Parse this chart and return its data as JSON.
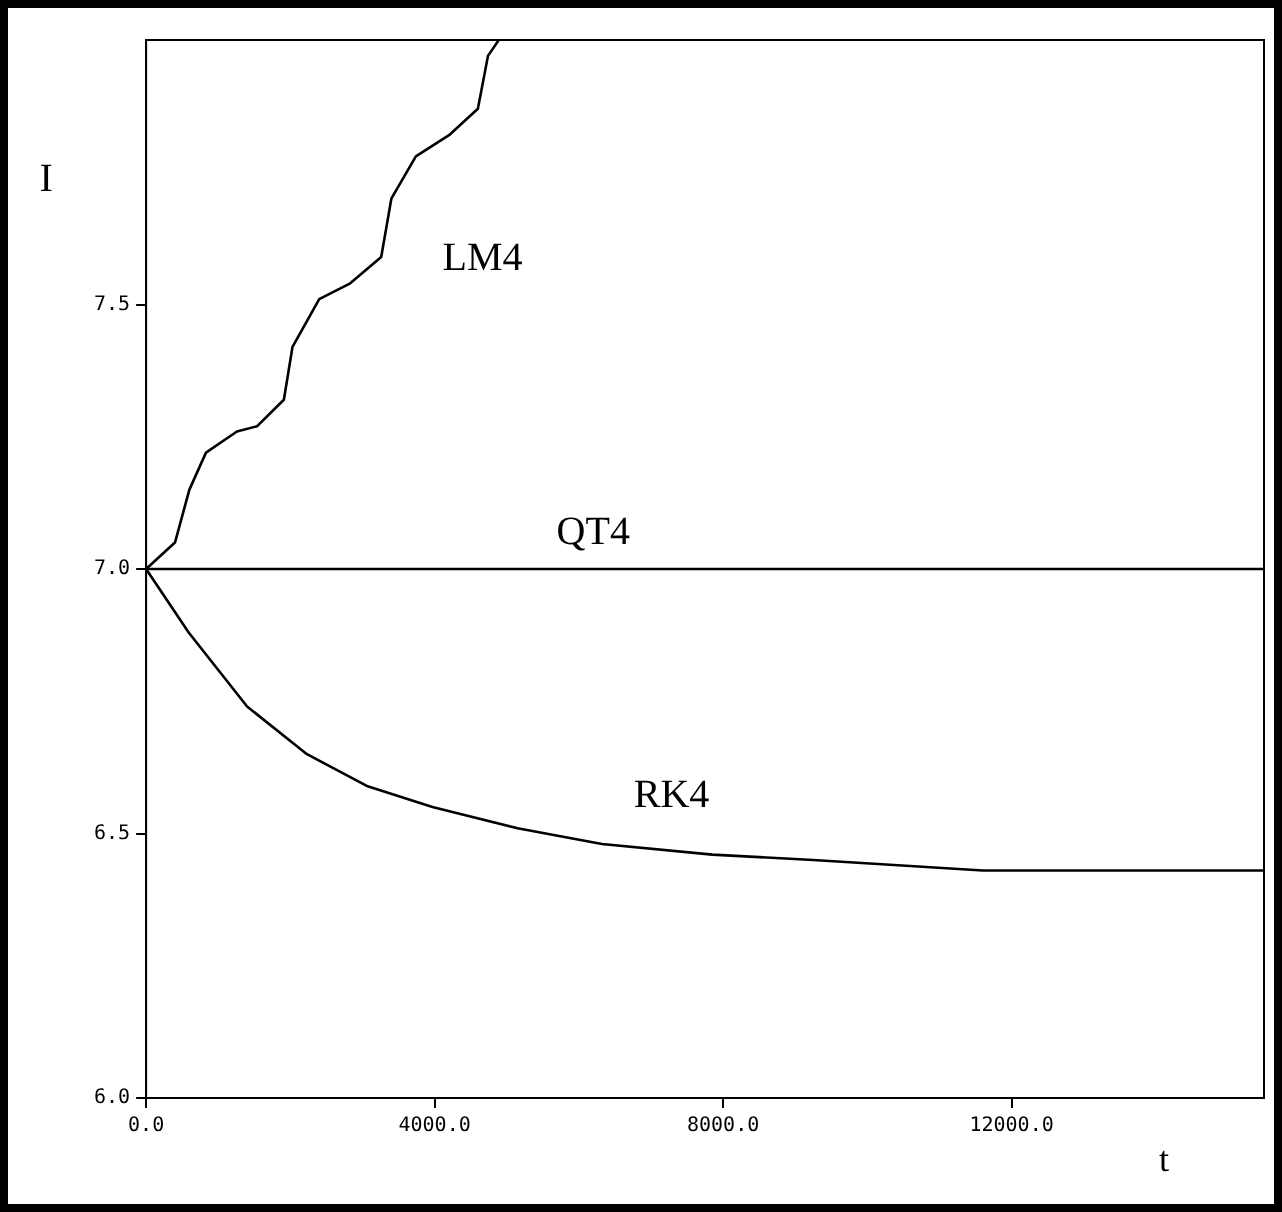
{
  "chart_data": {
    "type": "line",
    "xlabel": "t",
    "ylabel": "I",
    "xlim": [
      0,
      15500
    ],
    "xticks": [
      {
        "value": 0,
        "label": "0.0"
      },
      {
        "value": 4000,
        "label": "4000.0"
      },
      {
        "value": 8000,
        "label": "8000.0"
      },
      {
        "value": 12000,
        "label": "12000.0"
      }
    ],
    "ylim": [
      6.0,
      8.0
    ],
    "yticks": [
      {
        "value": 6.0,
        "label": "6.0"
      },
      {
        "value": 6.5,
        "label": "6.5"
      },
      {
        "value": 7.0,
        "label": "7.0"
      },
      {
        "value": 7.5,
        "label": "7.5"
      }
    ],
    "grid": false,
    "legend": false,
    "marker": "none",
    "line_style": "solid",
    "series": [
      {
        "name": "LM4",
        "color": "#000000",
        "x": [
          0,
          400,
          600,
          830,
          1260,
          1540,
          1910,
          2030,
          2400,
          2830,
          3260,
          3400,
          3740,
          4200,
          4600,
          4740,
          4890
        ],
        "values": [
          7.0,
          7.05,
          7.15,
          7.22,
          7.26,
          7.27,
          7.32,
          7.42,
          7.51,
          7.54,
          7.59,
          7.7,
          7.78,
          7.82,
          7.87,
          7.97,
          8.0
        ]
      },
      {
        "name": "QT4",
        "color": "#000000",
        "x": [
          0,
          15500
        ],
        "values": [
          7.0,
          7.0
        ]
      },
      {
        "name": "RK4",
        "color": "#000000",
        "x": [
          0,
          590,
          1400,
          2230,
          3060,
          3970,
          5150,
          6320,
          7850,
          9250,
          11600,
          15500
        ],
        "values": [
          7.0,
          6.88,
          6.74,
          6.65,
          6.59,
          6.55,
          6.51,
          6.48,
          6.46,
          6.45,
          6.43,
          6.43
        ]
      }
    ]
  }
}
